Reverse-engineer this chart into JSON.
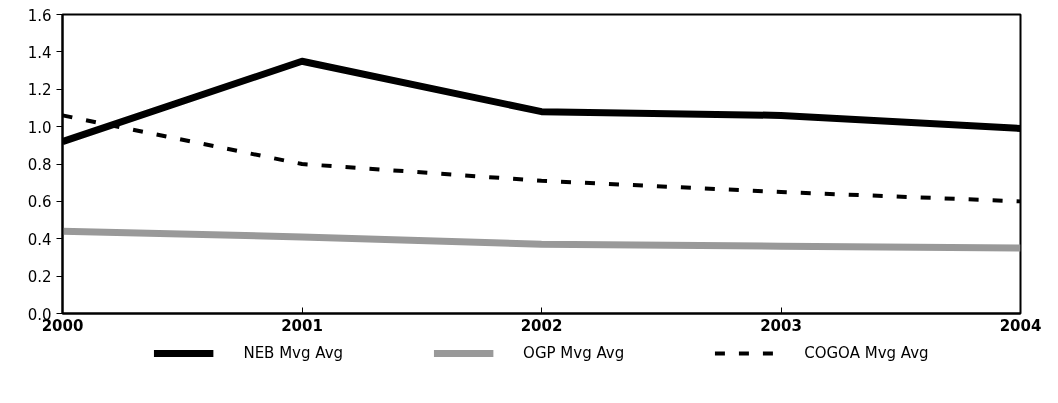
{
  "chart_data": {
    "type": "line",
    "x": [
      2000,
      2001,
      2002,
      2003,
      2004
    ],
    "xlim": [
      2000,
      2004
    ],
    "xticks": [
      2000,
      2001,
      2002,
      2003,
      2004
    ],
    "ylim": [
      0,
      1.6
    ],
    "yticks": [
      {
        "value": 0,
        "label": "0.0"
      },
      0.2,
      0.4,
      0.6,
      0.8,
      {
        "value": 1,
        "label": "1.0"
      },
      1.2,
      1.4,
      1.6
    ],
    "grid": false,
    "legend": "bottom",
    "series": [
      {
        "name": "NEB Mvg Avg",
        "color": "#000000",
        "line_style": "solid",
        "values": [
          0.92,
          1.35,
          1.08,
          1.06,
          0.99
        ]
      },
      {
        "name": "OGP Mvg Avg",
        "color": "#999999",
        "line_style": "solid",
        "values": [
          0.44,
          0.41,
          0.37,
          0.36,
          0.35
        ]
      },
      {
        "name": "COGOA Mvg Avg",
        "color": "#000000",
        "line_style": "dashed",
        "values": [
          1.06,
          0.8,
          0.71,
          0.65,
          0.6
        ]
      }
    ]
  }
}
